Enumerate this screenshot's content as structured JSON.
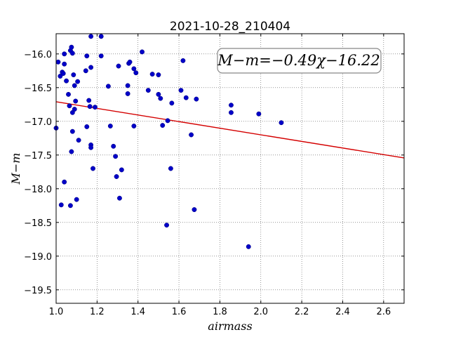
{
  "chart_data": {
    "type": "scatter",
    "title": "2021-10-28_210404",
    "xlabel": "airmass",
    "ylabel": "M−m",
    "xlim": [
      1.0,
      2.7
    ],
    "ylim": [
      -19.7,
      -15.7
    ],
    "y_inverted": true,
    "x_ticks": [
      1.0,
      1.2,
      1.4,
      1.6,
      1.8,
      2.0,
      2.2,
      2.4,
      2.6
    ],
    "x_tick_labels": [
      "1.0",
      "1.2",
      "1.4",
      "1.6",
      "1.8",
      "2.0",
      "2.2",
      "2.4",
      "2.6"
    ],
    "y_ticks": [
      -16.0,
      -16.5,
      -17.0,
      -17.5,
      -18.0,
      -18.5,
      -19.0,
      -19.5
    ],
    "y_tick_labels": [
      "−16.0",
      "−16.5",
      "−17.0",
      "−17.5",
      "−18.0",
      "−18.5",
      "−19.0",
      "−19.5"
    ],
    "grid": true,
    "annotation": "M−m=−0.49χ−16.22",
    "annotation_position": "top-right",
    "fit_line": {
      "slope": -0.49,
      "intercept": -16.22,
      "color": "#d40000"
    },
    "point_color": "#0000c8",
    "points": [
      [
        1.0,
        -17.1
      ],
      [
        1.01,
        -16.12
      ],
      [
        1.02,
        -16.33
      ],
      [
        1.025,
        -18.24
      ],
      [
        1.03,
        -16.27
      ],
      [
        1.035,
        -16.29
      ],
      [
        1.04,
        -17.9
      ],
      [
        1.04,
        -16.15
      ],
      [
        1.04,
        -16.0
      ],
      [
        1.05,
        -16.4
      ],
      [
        1.06,
        -16.6
      ],
      [
        1.065,
        -16.77
      ],
      [
        1.07,
        -18.25
      ],
      [
        1.07,
        -15.95
      ],
      [
        1.075,
        -15.9
      ],
      [
        1.075,
        -17.45
      ],
      [
        1.08,
        -17.15
      ],
      [
        1.08,
        -16.87
      ],
      [
        1.08,
        -15.99
      ],
      [
        1.085,
        -16.31
      ],
      [
        1.09,
        -16.82
      ],
      [
        1.09,
        -16.47
      ],
      [
        1.095,
        -16.7
      ],
      [
        1.1,
        -18.16
      ],
      [
        1.105,
        -16.41
      ],
      [
        1.11,
        -17.28
      ],
      [
        1.145,
        -16.25
      ],
      [
        1.15,
        -16.03
      ],
      [
        1.15,
        -17.08
      ],
      [
        1.16,
        -16.69
      ],
      [
        1.165,
        -16.78
      ],
      [
        1.17,
        -17.35
      ],
      [
        1.17,
        -17.39
      ],
      [
        1.17,
        -16.2
      ],
      [
        1.17,
        -15.74
      ],
      [
        1.18,
        -17.7
      ],
      [
        1.19,
        -16.79
      ],
      [
        1.22,
        -15.74
      ],
      [
        1.22,
        -16.03
      ],
      [
        1.255,
        -16.48
      ],
      [
        1.265,
        -17.07
      ],
      [
        1.28,
        -17.37
      ],
      [
        1.29,
        -17.52
      ],
      [
        1.295,
        -17.82
      ],
      [
        1.305,
        -16.18
      ],
      [
        1.31,
        -18.14
      ],
      [
        1.32,
        -17.72
      ],
      [
        1.35,
        -16.47
      ],
      [
        1.35,
        -16.59
      ],
      [
        1.355,
        -16.14
      ],
      [
        1.36,
        -16.12
      ],
      [
        1.38,
        -16.22
      ],
      [
        1.38,
        -17.07
      ],
      [
        1.39,
        -16.28
      ],
      [
        1.42,
        -15.97
      ],
      [
        1.45,
        -16.54
      ],
      [
        1.47,
        -16.3
      ],
      [
        1.5,
        -16.6
      ],
      [
        1.5,
        -16.31
      ],
      [
        1.51,
        -16.66
      ],
      [
        1.52,
        -17.06
      ],
      [
        1.54,
        -18.54
      ],
      [
        1.545,
        -16.99
      ],
      [
        1.56,
        -17.7
      ],
      [
        1.565,
        -16.73
      ],
      [
        1.61,
        -16.54
      ],
      [
        1.62,
        -16.1
      ],
      [
        1.635,
        -16.65
      ],
      [
        1.66,
        -17.2
      ],
      [
        1.675,
        -18.31
      ],
      [
        1.685,
        -16.67
      ],
      [
        1.855,
        -16.76
      ],
      [
        1.855,
        -16.87
      ],
      [
        1.94,
        -18.86
      ],
      [
        1.99,
        -16.89
      ],
      [
        2.1,
        -17.02
      ]
    ]
  }
}
